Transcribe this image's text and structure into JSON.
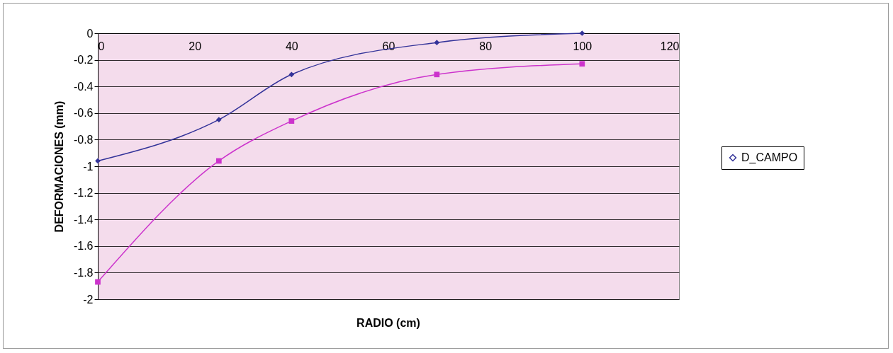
{
  "chart_data": {
    "type": "line",
    "xlabel": "RADIO (cm)",
    "ylabel": "DEFORMACIONES (mm)",
    "xlim": [
      0,
      120
    ],
    "xticks": [
      0,
      20,
      40,
      60,
      80,
      100,
      120
    ],
    "ylim": [
      -2,
      0
    ],
    "yticks": [
      -2,
      -1.8,
      -1.6,
      -1.4,
      -1.2,
      -1,
      -0.8,
      -0.6,
      -0.4,
      -0.2,
      0
    ],
    "grid": "y",
    "legend": "right",
    "series": [
      {
        "name": "D_CAMPO",
        "color": "#333399",
        "marker": "diamond",
        "x": [
          0,
          25,
          40,
          70,
          100
        ],
        "values": [
          -0.96,
          -0.65,
          -0.31,
          -0.07,
          0.0
        ]
      },
      {
        "color": "#cc33cc",
        "marker": "square",
        "x": [
          0,
          25,
          40,
          70,
          100
        ],
        "values": [
          -1.87,
          -0.96,
          -0.66,
          -0.31,
          -0.23
        ]
      }
    ]
  }
}
